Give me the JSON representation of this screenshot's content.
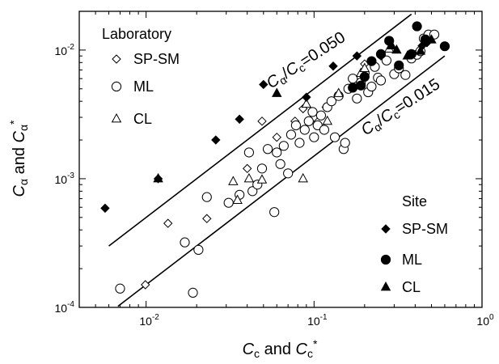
{
  "chart_data": {
    "type": "scatter",
    "scale": "log-log",
    "xlim": [
      0.004,
      1
    ],
    "ylim": [
      0.0001,
      0.02
    ],
    "xlabel": {
      "main": "C",
      "sub": "c",
      "mid": " and ",
      "main2": "C",
      "sub2": "c",
      "sup2": "*"
    },
    "ylabel": {
      "main": "C",
      "sub": "α",
      "mid": " and ",
      "main2": "C",
      "sub2": "α",
      "sup2": "*"
    },
    "x_ticks": [
      {
        "value": 0.01,
        "base": "10",
        "exp": "-2"
      },
      {
        "value": 0.1,
        "base": "10",
        "exp": "-1"
      },
      {
        "value": 1,
        "base": "10",
        "exp": "0"
      }
    ],
    "y_ticks": [
      {
        "value": 0.0001,
        "base": "10",
        "exp": "-4"
      },
      {
        "value": 0.001,
        "base": "10",
        "exp": "-3"
      },
      {
        "value": 0.01,
        "base": "10",
        "exp": "-2"
      }
    ],
    "grid": false,
    "reference_lines": [
      {
        "ratio": 0.05,
        "label_main": "C",
        "label_sub1": "α",
        "label_sep": "/",
        "label_main2": "C",
        "label_sub2": "c",
        "label_eq": "=0.050"
      },
      {
        "ratio": 0.015,
        "label_main": "C",
        "label_sub1": "α",
        "label_sep": "/",
        "label_main2": "C",
        "label_sub2": "c",
        "label_eq": "=0.015"
      }
    ],
    "legend_laboratory": {
      "title": "Laboratory",
      "placement": "top-left",
      "items": [
        "SP-SM",
        "ML",
        "CL"
      ]
    },
    "legend_site": {
      "title": "Site",
      "placement": "bottom-right",
      "items": [
        "SP-SM",
        "ML",
        "CL"
      ]
    },
    "series": [
      {
        "name": "SP-SM",
        "group": "Laboratory",
        "marker": "diamond",
        "filled": false,
        "points": [
          [
            0.0099,
            0.00015
          ],
          [
            0.0135,
            0.00045
          ],
          [
            0.023,
            0.00049
          ],
          [
            0.049,
            0.0028
          ],
          [
            0.04,
            0.0012
          ],
          [
            0.06,
            0.0021
          ],
          [
            0.077,
            0.0028
          ],
          [
            0.086,
            0.0035
          ],
          [
            0.1,
            0.003
          ],
          [
            0.118,
            0.0036
          ],
          [
            0.2,
            0.0078
          ],
          [
            0.25,
            0.009
          ]
        ]
      },
      {
        "name": "ML",
        "group": "Laboratory",
        "marker": "circle",
        "filled": false,
        "points": [
          [
            0.007,
            0.00014
          ],
          [
            0.019,
            0.00013
          ],
          [
            0.017,
            0.00032
          ],
          [
            0.0205,
            0.00028
          ],
          [
            0.023,
            0.00072
          ],
          [
            0.031,
            0.00065
          ],
          [
            0.036,
            0.00075
          ],
          [
            0.041,
            0.0016
          ],
          [
            0.043,
            0.0008
          ],
          [
            0.046,
            0.0009
          ],
          [
            0.049,
            0.0012
          ],
          [
            0.053,
            0.0017
          ],
          [
            0.058,
            0.00055
          ],
          [
            0.06,
            0.0016
          ],
          [
            0.063,
            0.0013
          ],
          [
            0.066,
            0.0018
          ],
          [
            0.07,
            0.0011
          ],
          [
            0.073,
            0.0022
          ],
          [
            0.078,
            0.0026
          ],
          [
            0.082,
            0.0019
          ],
          [
            0.088,
            0.0024
          ],
          [
            0.093,
            0.0028
          ],
          [
            0.098,
            0.0033
          ],
          [
            0.1,
            0.0021
          ],
          [
            0.105,
            0.0026
          ],
          [
            0.11,
            0.0031
          ],
          [
            0.115,
            0.0024
          ],
          [
            0.12,
            0.0036
          ],
          [
            0.127,
            0.004
          ],
          [
            0.133,
            0.0021
          ],
          [
            0.14,
            0.0044
          ],
          [
            0.15,
            0.0017
          ],
          [
            0.153,
            0.0019
          ],
          [
            0.16,
            0.005
          ],
          [
            0.17,
            0.006
          ],
          [
            0.18,
            0.0042
          ],
          [
            0.19,
            0.0056
          ],
          [
            0.2,
            0.0066
          ],
          [
            0.21,
            0.0047
          ],
          [
            0.22,
            0.0052
          ],
          [
            0.23,
            0.0074
          ],
          [
            0.24,
            0.0061
          ],
          [
            0.25,
            0.0058
          ],
          [
            0.27,
            0.0083
          ],
          [
            0.3,
            0.0065
          ],
          [
            0.32,
            0.0072
          ],
          [
            0.35,
            0.0064
          ],
          [
            0.38,
            0.0086
          ],
          [
            0.41,
            0.0092
          ],
          [
            0.43,
            0.0098
          ],
          [
            0.45,
            0.0123
          ],
          [
            0.48,
            0.0132
          ],
          [
            0.52,
            0.0132
          ]
        ]
      },
      {
        "name": "CL",
        "group": "Laboratory",
        "marker": "triangle",
        "filled": false,
        "points": [
          [
            0.033,
            0.00095
          ],
          [
            0.035,
            0.00068
          ],
          [
            0.041,
            0.001
          ],
          [
            0.049,
            0.00098
          ],
          [
            0.086,
            0.001
          ],
          [
            0.09,
            0.0038
          ],
          [
            0.12,
            0.0028
          ],
          [
            0.14,
            0.0046
          ],
          [
            0.19,
            0.0066
          ],
          [
            0.2,
            0.0072
          ],
          [
            0.28,
            0.0102
          ]
        ]
      },
      {
        "name": "SP-SM",
        "group": "Site",
        "marker": "diamond",
        "filled": true,
        "points": [
          [
            0.0057,
            0.00059
          ],
          [
            0.0118,
            0.001
          ],
          [
            0.026,
            0.002
          ],
          [
            0.036,
            0.0029
          ],
          [
            0.05,
            0.0054
          ],
          [
            0.09,
            0.0043
          ],
          [
            0.13,
            0.0075
          ],
          [
            0.18,
            0.009
          ],
          [
            0.44,
            0.0108
          ],
          [
            0.47,
            0.0114
          ]
        ]
      },
      {
        "name": "ML",
        "group": "Site",
        "marker": "circle",
        "filled": true,
        "points": [
          [
            0.17,
            0.0051
          ],
          [
            0.19,
            0.0053
          ],
          [
            0.2,
            0.0062
          ],
          [
            0.22,
            0.0082
          ],
          [
            0.25,
            0.0093
          ],
          [
            0.28,
            0.0118
          ],
          [
            0.32,
            0.0076
          ],
          [
            0.38,
            0.0093
          ],
          [
            0.41,
            0.0153
          ],
          [
            0.46,
            0.0121
          ],
          [
            0.6,
            0.0107
          ]
        ]
      },
      {
        "name": "CL",
        "group": "Site",
        "marker": "triangle",
        "filled": true,
        "points": [
          [
            0.0118,
            0.001
          ],
          [
            0.06,
            0.0046
          ],
          [
            0.29,
            0.0108
          ],
          [
            0.31,
            0.01
          ],
          [
            0.36,
            0.009
          ],
          [
            0.43,
            0.0098
          ],
          [
            0.5,
            0.012
          ]
        ]
      }
    ]
  }
}
